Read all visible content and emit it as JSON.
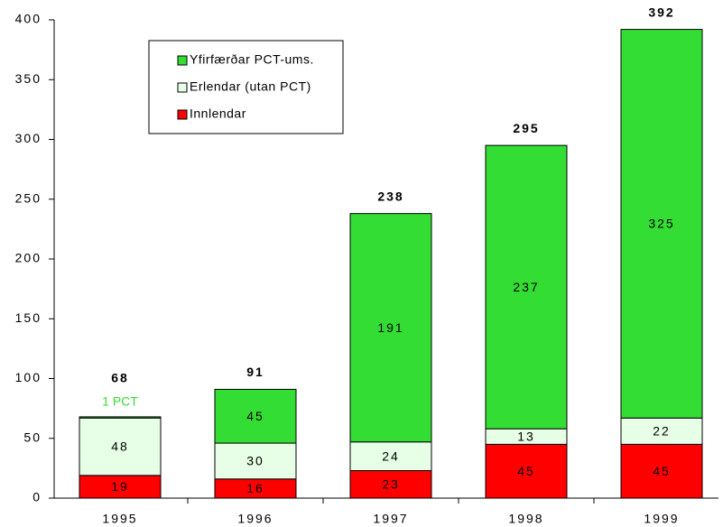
{
  "chart_data": {
    "type": "stacked_bar",
    "categories": [
      "1995",
      "1996",
      "1997",
      "1998",
      "1999"
    ],
    "series": [
      {
        "name": "Innlendar",
        "color": "#ff0000",
        "values": [
          19,
          16,
          23,
          45,
          45
        ]
      },
      {
        "name": "Erlendar (utan PCT)",
        "color": "#e6ffe6",
        "values": [
          48,
          30,
          24,
          13,
          22
        ]
      },
      {
        "name": "Yfirfærðar PCT-ums.",
        "color": "#33dd33",
        "values": [
          1,
          45,
          191,
          237,
          325
        ],
        "value_labels": [
          "1 PCT",
          "45",
          "191",
          "237",
          "325"
        ]
      }
    ],
    "totals": [
      68,
      91,
      238,
      295,
      392
    ],
    "ylim": [
      0,
      400
    ],
    "yticks": [
      0,
      50,
      100,
      150,
      200,
      250,
      300,
      350,
      400
    ],
    "legend": "top-left"
  }
}
